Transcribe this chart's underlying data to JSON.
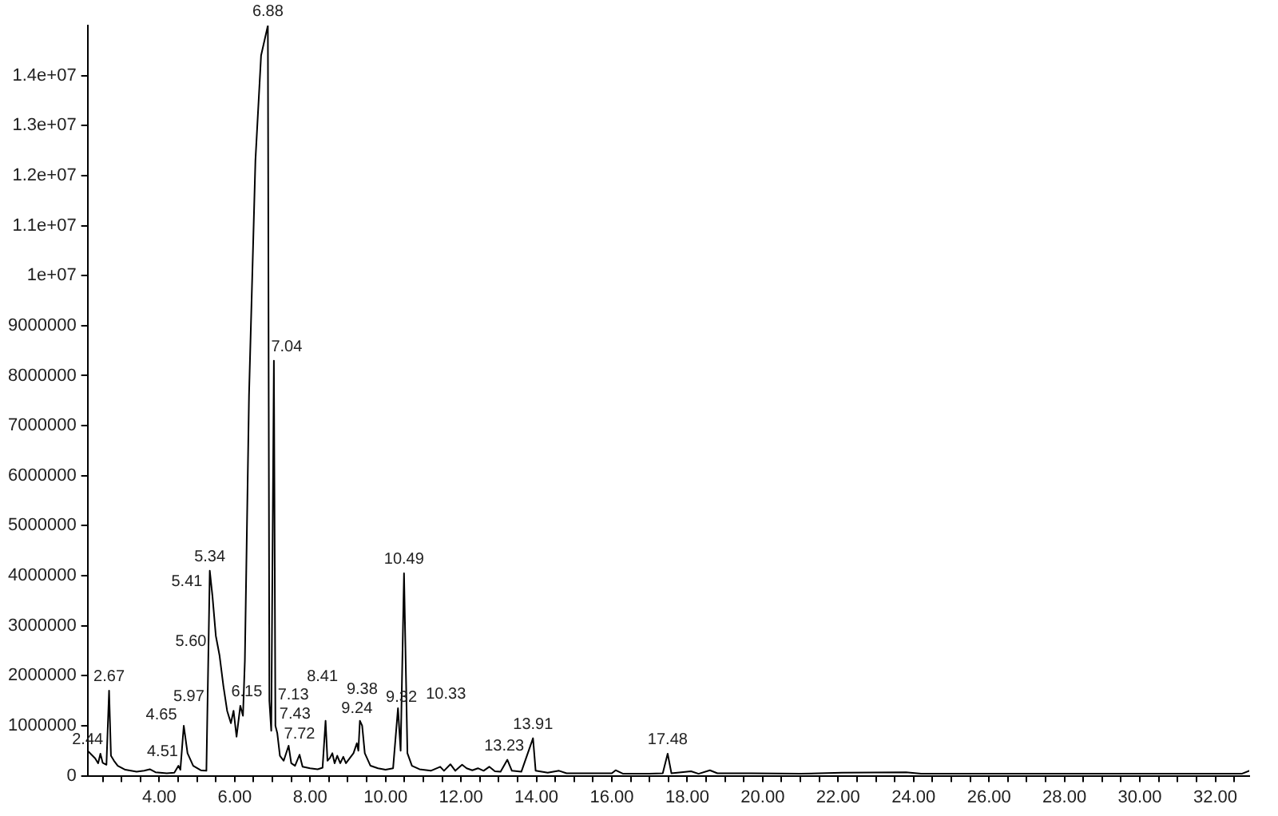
{
  "chart_data": {
    "type": "line",
    "marker": "none",
    "legend": false,
    "grid": false,
    "xlim": [
      2.1,
      32.9
    ],
    "xticks": [
      {
        "value": 2.5,
        "label": null
      },
      {
        "value": 3,
        "label": null
      },
      {
        "value": 3.5,
        "label": null
      },
      {
        "value": 4,
        "label": "4.00"
      },
      {
        "value": 4.5,
        "label": null
      },
      {
        "value": 5,
        "label": null
      },
      {
        "value": 5.5,
        "label": null
      },
      {
        "value": 6,
        "label": "6.00"
      },
      {
        "value": 6.5,
        "label": null
      },
      {
        "value": 7,
        "label": null
      },
      {
        "value": 7.5,
        "label": null
      },
      {
        "value": 8,
        "label": "8.00"
      },
      {
        "value": 8.5,
        "label": null
      },
      {
        "value": 9,
        "label": null
      },
      {
        "value": 9.5,
        "label": null
      },
      {
        "value": 10,
        "label": "10.00"
      },
      {
        "value": 10.5,
        "label": null
      },
      {
        "value": 11,
        "label": null
      },
      {
        "value": 11.5,
        "label": null
      },
      {
        "value": 12,
        "label": "12.00"
      },
      {
        "value": 12.5,
        "label": null
      },
      {
        "value": 13,
        "label": null
      },
      {
        "value": 13.5,
        "label": null
      },
      {
        "value": 14,
        "label": "14.00"
      },
      {
        "value": 14.5,
        "label": null
      },
      {
        "value": 15,
        "label": null
      },
      {
        "value": 15.5,
        "label": null
      },
      {
        "value": 16,
        "label": "16.00"
      },
      {
        "value": 16.5,
        "label": null
      },
      {
        "value": 17,
        "label": null
      },
      {
        "value": 17.5,
        "label": null
      },
      {
        "value": 18,
        "label": "18.00"
      },
      {
        "value": 18.5,
        "label": null
      },
      {
        "value": 19,
        "label": null
      },
      {
        "value": 19.5,
        "label": null
      },
      {
        "value": 20,
        "label": "20.00"
      },
      {
        "value": 20.5,
        "label": null
      },
      {
        "value": 21,
        "label": null
      },
      {
        "value": 21.5,
        "label": null
      },
      {
        "value": 22,
        "label": "22.00"
      },
      {
        "value": 22.5,
        "label": null
      },
      {
        "value": 23,
        "label": null
      },
      {
        "value": 23.5,
        "label": null
      },
      {
        "value": 24,
        "label": "24.00"
      },
      {
        "value": 24.5,
        "label": null
      },
      {
        "value": 25,
        "label": null
      },
      {
        "value": 25.5,
        "label": null
      },
      {
        "value": 26,
        "label": "26.00"
      },
      {
        "value": 26.5,
        "label": null
      },
      {
        "value": 27,
        "label": null
      },
      {
        "value": 27.5,
        "label": null
      },
      {
        "value": 28,
        "label": "28.00"
      },
      {
        "value": 28.5,
        "label": null
      },
      {
        "value": 29,
        "label": null
      },
      {
        "value": 29.5,
        "label": null
      },
      {
        "value": 30,
        "label": "30.00"
      },
      {
        "value": 30.5,
        "label": null
      },
      {
        "value": 31,
        "label": null
      },
      {
        "value": 31.5,
        "label": null
      },
      {
        "value": 32,
        "label": "32.00"
      },
      {
        "value": 32.5,
        "label": null
      }
    ],
    "ylim": [
      0,
      15000000
    ],
    "yticks": [
      0,
      1000000,
      2000000,
      3000000,
      4000000,
      5000000,
      6000000,
      7000000,
      8000000,
      9000000,
      {
        "value": 10000000,
        "label": "1e+07"
      },
      {
        "value": 11000000,
        "label": "1.1e+07"
      },
      {
        "value": 12000000,
        "label": "1.2e+07"
      },
      {
        "value": 13000000,
        "label": "1.3e+07"
      },
      {
        "value": 14000000,
        "label": "1.4e+07"
      }
    ],
    "x": [
      2.1,
      2.3,
      2.38,
      2.44,
      2.5,
      2.6,
      2.67,
      2.72,
      2.8,
      2.9,
      3.1,
      3.4,
      3.6,
      3.75,
      3.9,
      4.2,
      4.4,
      4.51,
      4.56,
      4.65,
      4.75,
      4.9,
      5.1,
      5.25,
      5.34,
      5.41,
      5.5,
      5.6,
      5.7,
      5.8,
      5.9,
      5.97,
      6.05,
      6.15,
      6.22,
      6.27,
      6.38,
      6.55,
      6.7,
      6.88,
      6.92,
      6.97,
      7.04,
      7.08,
      7.13,
      7.2,
      7.3,
      7.43,
      7.5,
      7.6,
      7.72,
      7.8,
      8.0,
      8.2,
      8.33,
      8.41,
      8.46,
      8.52,
      8.59,
      8.65,
      8.72,
      8.8,
      8.88,
      8.95,
      9.05,
      9.15,
      9.24,
      9.28,
      9.32,
      9.38,
      9.45,
      9.6,
      9.8,
      10.0,
      10.2,
      10.33,
      10.4,
      10.49,
      10.58,
      10.7,
      10.9,
      11.2,
      11.45,
      11.55,
      11.72,
      11.85,
      12.03,
      12.15,
      12.3,
      12.45,
      12.6,
      12.75,
      12.9,
      13.05,
      13.23,
      13.35,
      13.6,
      13.91,
      13.98,
      14.3,
      14.6,
      14.8,
      15.5,
      16.0,
      16.1,
      16.3,
      17.0,
      17.35,
      17.48,
      17.58,
      18.1,
      18.3,
      18.6,
      18.8,
      19.7,
      21.0,
      22.1,
      23.8,
      24.2,
      32.7,
      32.9
    ],
    "series": [
      {
        "color": "#000000",
        "values": [
          500000,
          350000,
          250000,
          440000,
          260000,
          220000,
          1700000,
          400000,
          300000,
          200000,
          120000,
          80000,
          100000,
          130000,
          70000,
          50000,
          60000,
          200000,
          120000,
          1000000,
          450000,
          200000,
          110000,
          100000,
          4100000,
          3600000,
          2800000,
          2400000,
          1800000,
          1300000,
          1050000,
          1300000,
          780000,
          1400000,
          1200000,
          2300000,
          7600000,
          12300000,
          14400000,
          15000000,
          1500000,
          900000,
          8300000,
          1000000,
          850000,
          400000,
          300000,
          600000,
          250000,
          200000,
          420000,
          180000,
          150000,
          130000,
          160000,
          1100000,
          300000,
          350000,
          450000,
          250000,
          400000,
          250000,
          380000,
          250000,
          350000,
          450000,
          650000,
          500000,
          1100000,
          1000000,
          450000,
          200000,
          150000,
          120000,
          150000,
          1350000,
          500000,
          4050000,
          450000,
          200000,
          130000,
          100000,
          180000,
          100000,
          230000,
          100000,
          220000,
          150000,
          110000,
          150000,
          100000,
          180000,
          90000,
          80000,
          320000,
          100000,
          80000,
          750000,
          100000,
          60000,
          100000,
          50000,
          50000,
          50000,
          110000,
          40000,
          40000,
          50000,
          440000,
          50000,
          90000,
          40000,
          110000,
          50000,
          50000,
          40000,
          60000,
          70000,
          40000,
          40000,
          100000
        ]
      }
    ],
    "annotations": [
      {
        "text": "2.44",
        "x": 2.44,
        "y": 440000
      },
      {
        "text": "2.67",
        "x": 2.67,
        "y": 1700000
      },
      {
        "text": "4.51",
        "x": 4.51,
        "y": 200000
      },
      {
        "text": "4.65",
        "x": 4.65,
        "y": 1000000
      },
      {
        "text": "5.34",
        "x": 5.34,
        "y": 4100000
      },
      {
        "text": "5.41",
        "x": 5.41,
        "y": 3600000
      },
      {
        "text": "5.60",
        "x": 5.6,
        "y": 2400000
      },
      {
        "text": "5.97",
        "x": 5.97,
        "y": 1300000
      },
      {
        "text": "6.15",
        "x": 6.15,
        "y": 1400000
      },
      {
        "text": "6.88",
        "x": 6.88,
        "y": 15000000
      },
      {
        "text": "7.04",
        "x": 7.04,
        "y": 8300000
      },
      {
        "text": "7.13",
        "x": 7.13,
        "y": 850000
      },
      {
        "text": "7.43",
        "x": 7.43,
        "y": 600000
      },
      {
        "text": "7.72",
        "x": 7.72,
        "y": 420000
      },
      {
        "text": "8.41",
        "x": 8.41,
        "y": 1100000
      },
      {
        "text": "9.24",
        "x": 9.24,
        "y": 650000
      },
      {
        "text": "9.32",
        "x": 9.32,
        "y": 1100000
      },
      {
        "text": "9.38",
        "x": 9.38,
        "y": 1000000
      },
      {
        "text": "10.33",
        "x": 10.33,
        "y": 1350000
      },
      {
        "text": "10.49",
        "x": 10.49,
        "y": 4050000
      },
      {
        "text": "13.23",
        "x": 13.23,
        "y": 320000
      },
      {
        "text": "13.91",
        "x": 13.91,
        "y": 750000
      },
      {
        "text": "17.48",
        "x": 17.48,
        "y": 440000
      }
    ]
  }
}
